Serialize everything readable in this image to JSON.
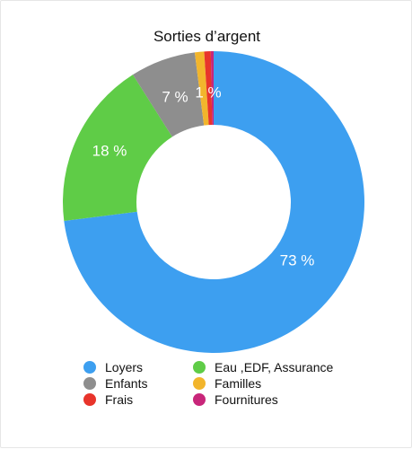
{
  "chart_data": {
    "type": "pie",
    "variant": "donut",
    "title": "Sorties d’argent",
    "categories": [
      "Loyers",
      "Eau ,EDF, Assurance",
      "Enfants",
      "Familles",
      "Frais",
      "Fournitures"
    ],
    "values": [
      73,
      18,
      7,
      1,
      0.7,
      0.3
    ],
    "colors": [
      "#3d9ff0",
      "#5fcc47",
      "#8e8e8e",
      "#f2b52c",
      "#e8342b",
      "#c8267a"
    ],
    "data_labels": [
      "73 %",
      "18 %",
      "7 %",
      "1 %",
      "",
      ""
    ],
    "legend_position": "bottom"
  }
}
